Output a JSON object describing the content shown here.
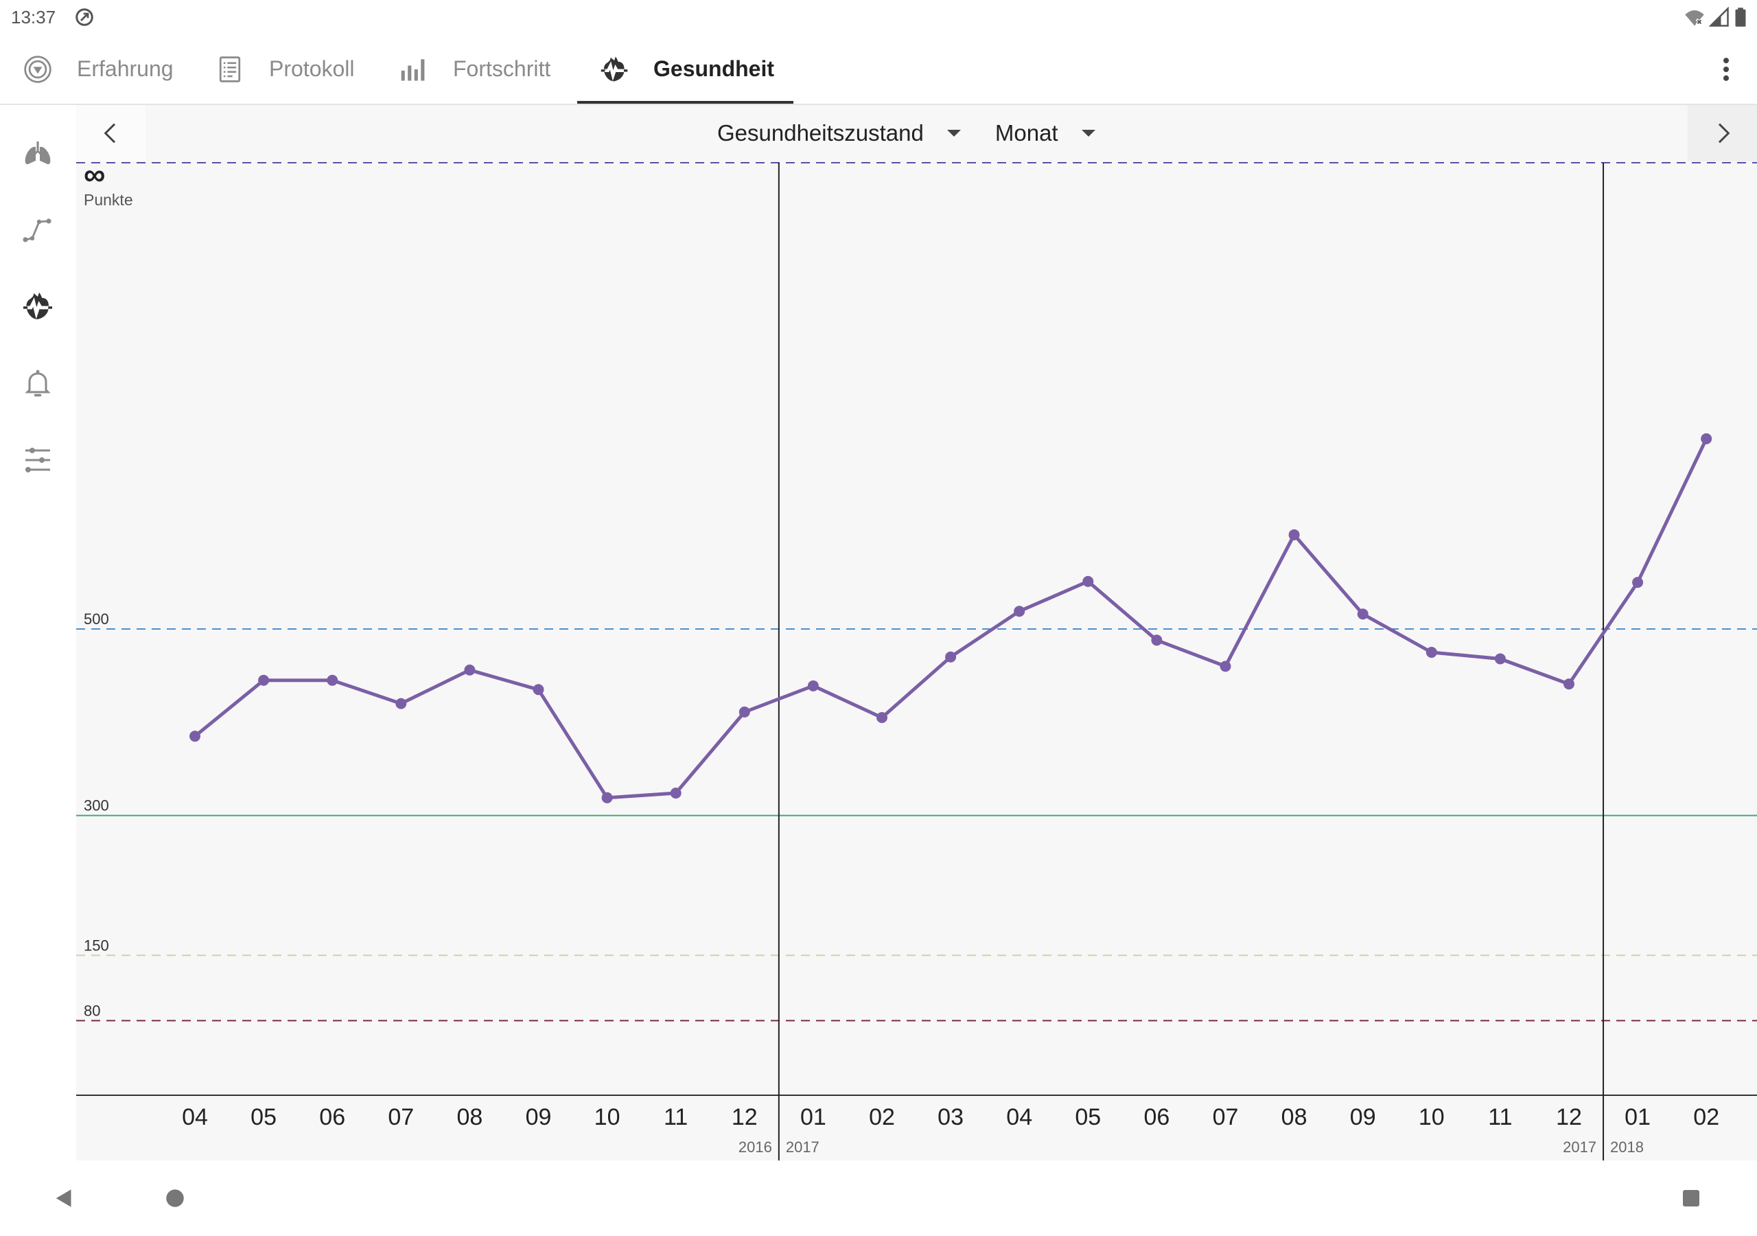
{
  "status_bar": {
    "time": "13:37",
    "left_icon": "data-saver-icon",
    "right_icons": [
      "wifi-off-icon",
      "cell-signal-icon",
      "battery-icon"
    ]
  },
  "tabs": [
    {
      "label": "Erfahrung",
      "icon": "compass-icon",
      "active": false
    },
    {
      "label": "Protokoll",
      "icon": "document-list-icon",
      "active": false
    },
    {
      "label": "Fortschritt",
      "icon": "bar-chart-icon",
      "active": false
    },
    {
      "label": "Gesundheit",
      "icon": "heart-pulse-icon",
      "active": true
    }
  ],
  "overflow_menu_icon": "more-vert-icon",
  "sidebar": {
    "items": [
      {
        "icon": "lungs-icon",
        "active": false
      },
      {
        "icon": "line-chart-icon",
        "active": false
      },
      {
        "icon": "heart-pulse-icon",
        "active": true
      },
      {
        "icon": "bell-icon",
        "active": false
      },
      {
        "icon": "sliders-icon",
        "active": false
      }
    ]
  },
  "chart_header": {
    "prev_icon": "chevron-left-icon",
    "next_icon": "chevron-right-icon",
    "metric": "Gesundheitszustand",
    "period": "Monat",
    "dropdown_icon": "arrow-drop-down-icon"
  },
  "colors": {
    "active_text": "#222222",
    "inactive": "#8a8a8a",
    "chart_background": "#f7f7f7"
  },
  "chart_data": {
    "type": "line",
    "categories": [
      "04",
      "05",
      "06",
      "07",
      "08",
      "09",
      "10",
      "11",
      "12",
      "01",
      "02",
      "03",
      "04",
      "05",
      "06",
      "07",
      "08",
      "09",
      "10",
      "11",
      "12",
      "01",
      "02"
    ],
    "values": [
      385,
      445,
      445,
      420,
      456,
      435,
      319,
      324,
      411,
      439,
      405,
      470,
      519,
      551,
      488,
      460,
      601,
      516,
      475,
      468,
      441,
      550,
      704
    ],
    "ylabel": "Punkte",
    "y_top_label": "∞",
    "ylim": [
      0,
      1000
    ],
    "line_color": "#7b5fa6",
    "top_line_color": "#5b4fa6",
    "reference_lines": [
      {
        "value": 500,
        "label": "500",
        "color": "#4a90d0",
        "dashed": true
      },
      {
        "value": 300,
        "label": "300",
        "color": "#43a874",
        "dashed": false
      },
      {
        "value": 150,
        "label": "150",
        "color": "#cfd3a2",
        "dashed": true
      },
      {
        "value": 80,
        "label": "80",
        "color": "#7d2a4a",
        "dashed": true
      }
    ],
    "year_breaks": [
      {
        "after_index": 8,
        "before_label": "2016",
        "after_label": "2017"
      },
      {
        "after_index": 20,
        "before_label": "2017",
        "after_label": "2018"
      }
    ],
    "grid": false,
    "legend": "none"
  },
  "nav_bar": {
    "icons": [
      "back-icon",
      "home-icon",
      "recents-icon"
    ]
  }
}
